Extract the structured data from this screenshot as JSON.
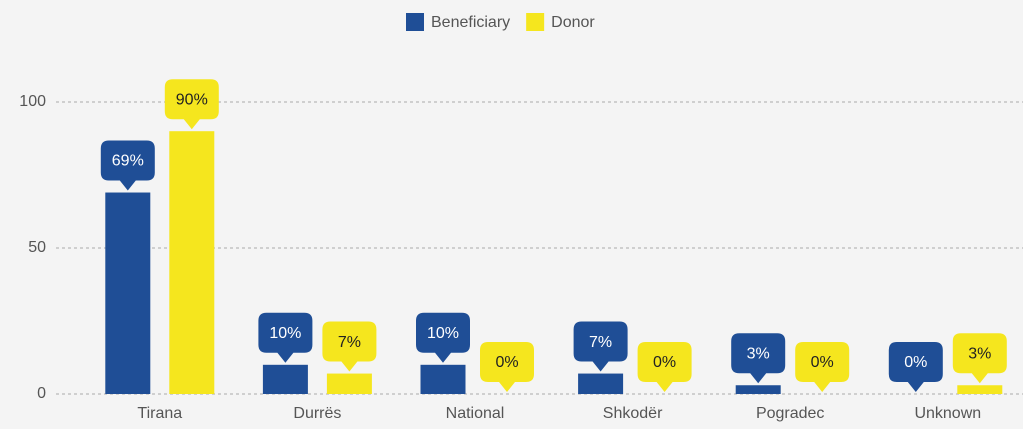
{
  "chart_data": {
    "type": "bar",
    "categories": [
      "Tirana",
      "Durrës",
      "National",
      "Shkodër",
      "Pogradec",
      "Unknown"
    ],
    "series": [
      {
        "name": "Beneficiary",
        "color": "#1f4e96",
        "values": [
          69,
          10,
          10,
          7,
          3,
          0
        ],
        "value_labels": [
          "69%",
          "10%",
          "10%",
          "7%",
          "3%",
          "0%"
        ]
      },
      {
        "name": "Donor",
        "color": "#f5e61e",
        "values": [
          90,
          7,
          0,
          0,
          0,
          3
        ],
        "value_labels": [
          "90%",
          "7%",
          "0%",
          "0%",
          "0%",
          "3%"
        ]
      }
    ],
    "ylim": [
      0,
      100
    ],
    "yticks": [
      0,
      50,
      100
    ],
    "grid": true,
    "legend": "top"
  }
}
